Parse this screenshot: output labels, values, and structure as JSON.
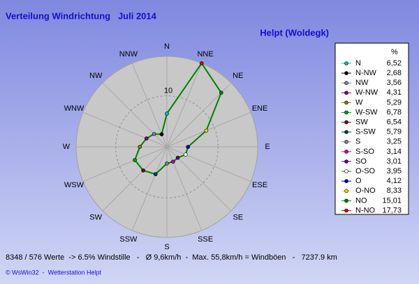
{
  "chart_data": {
    "type": "radar",
    "title": "Verteilung Windrichtung   Juli 2014",
    "subtitle": "Helpt (Woldegk)",
    "directions": [
      "N",
      "NNE",
      "NE",
      "ENE",
      "E",
      "ESE",
      "SE",
      "SSE",
      "S",
      "SSW",
      "SW",
      "WSW",
      "W",
      "WNW",
      "NW",
      "NNW"
    ],
    "legend_header": "%",
    "categories": [
      "N",
      "N-NW",
      "NW",
      "W-NW",
      "W",
      "W-SW",
      "SW",
      "S-SW",
      "S",
      "S-SO",
      "SO",
      "O-SO",
      "O",
      "O-NO",
      "NO",
      "N-NO"
    ],
    "values": [
      6.52,
      2.68,
      3.56,
      4.31,
      5.29,
      6.78,
      6.54,
      5.79,
      3.25,
      3.14,
      3.01,
      3.95,
      4.12,
      8.33,
      15.01,
      17.73
    ],
    "value_labels": [
      "6,52",
      "2,68",
      "3,56",
      "4,31",
      "5,29",
      "6,78",
      "6,54",
      "5,79",
      "3,25",
      "3,14",
      "3,01",
      "3,95",
      "4,12",
      "8,33",
      "15,01",
      "17,73"
    ],
    "colors": [
      "#00c0c0",
      "#000000",
      "#8080a0",
      "#800080",
      "#808000",
      "#00a000",
      "#800000",
      "#004060",
      "#808080",
      "#c000c0",
      "#600080",
      "#ffffff",
      "#0000c0",
      "#e0e000",
      "#008000",
      "#e00000"
    ],
    "line_color": "#008000",
    "rlim": [
      0,
      17.73
    ],
    "rticks": [
      10
    ],
    "annotations": [
      "8348 / 576 Werte  -> 6.5% Windstille   -   Ø 9,6km/h  -  Max. 55,8km/h = Windböen   -   7237.9 km",
      "© WsWin32  -  Wetterstation Helpt"
    ]
  }
}
